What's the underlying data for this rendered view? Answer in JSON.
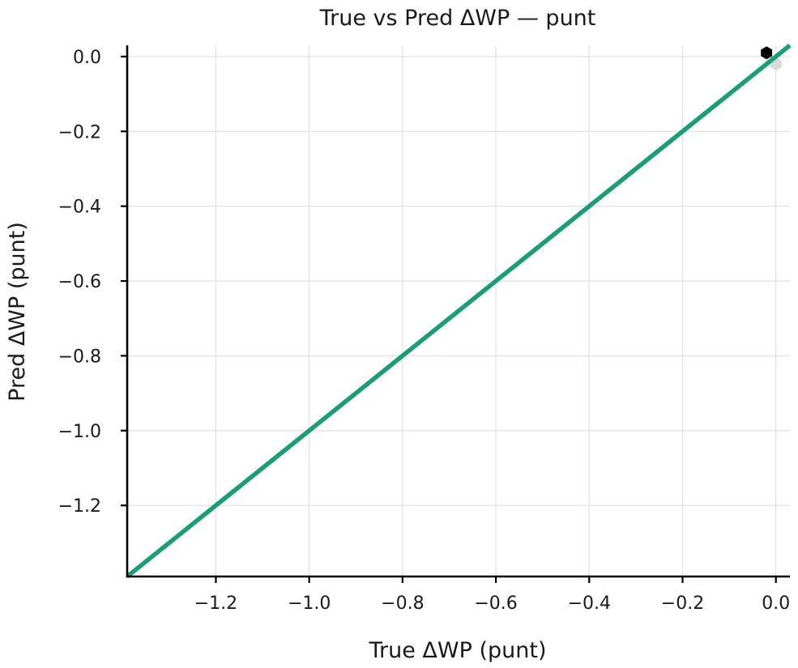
{
  "chart_data": {
    "type": "scatter",
    "title": "True vs Pred ΔWP — punt",
    "xlabel": "True ΔWP (punt)",
    "ylabel": "Pred ΔWP (punt)",
    "xlim": [
      -1.39,
      0.03
    ],
    "ylim": [
      -1.39,
      0.03
    ],
    "x_ticks": [
      -1.2,
      -1.0,
      -0.8,
      -0.6,
      -0.4,
      -0.2,
      0.0
    ],
    "x_tick_labels": [
      "−1.2",
      "−1.0",
      "−0.8",
      "−0.6",
      "−0.4",
      "−0.2",
      "0.0"
    ],
    "y_ticks": [
      0.0,
      -0.2,
      -0.4,
      -0.6,
      -0.8,
      -1.0,
      -1.2
    ],
    "y_tick_labels": [
      "0.0",
      "−0.2",
      "−0.4",
      "−0.6",
      "−0.8",
      "−1.0",
      "−1.2"
    ],
    "grid": true,
    "hexbin_points": [
      {
        "x": -0.02,
        "y": 0.01,
        "density": "high"
      },
      {
        "x": 0.0,
        "y": -0.02,
        "density": "low"
      }
    ],
    "reference_line": {
      "x": [
        -1.39,
        0.03
      ],
      "y": [
        -1.39,
        0.03
      ],
      "color": "#1b9e77"
    },
    "colors": {
      "hex_high": "#000000",
      "hex_low": "#d9d9d9",
      "line": "#1b9e77"
    }
  }
}
